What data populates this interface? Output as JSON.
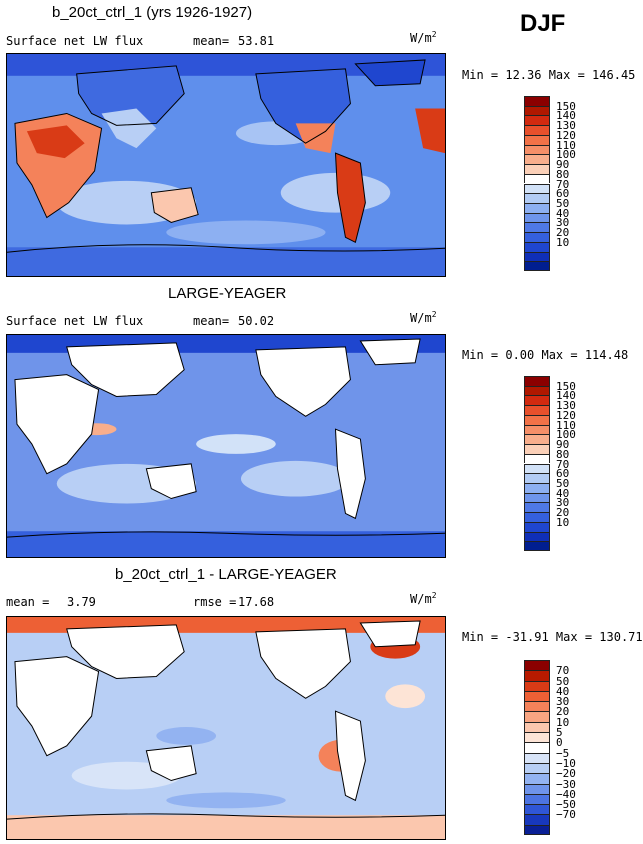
{
  "season": "DJF",
  "units": "W/m",
  "units_sup": "2",
  "panels": [
    {
      "title": "b_20ct_ctrl_1 (yrs 1926-1927)",
      "field": "Surface net LW flux",
      "mean_label": "mean=",
      "mean_value": "53.81",
      "rmse_label": "",
      "rmse_value": "",
      "minmax": "Min =  12.36 Max = 146.45",
      "map_mode": "full"
    },
    {
      "title": "LARGE-YEAGER",
      "field": "Surface net LW flux",
      "mean_label": "mean=",
      "mean_value": "50.02",
      "rmse_label": "",
      "rmse_value": "",
      "minmax": "Min =   0.00 Max = 114.48",
      "map_mode": "ocean"
    },
    {
      "title": "b_20ct_ctrl_1 - LARGE-YEAGER",
      "field": "mean =",
      "mean_label": "",
      "mean_value": "3.79",
      "rmse_label": "rmse =",
      "rmse_value": "17.68",
      "minmax": "Min = -31.91 Max = 130.71",
      "map_mode": "diff"
    }
  ],
  "colorbars": {
    "abs": {
      "labels": [
        "150",
        "140",
        "130",
        "120",
        "110",
        "100",
        "90",
        "80",
        "70",
        "60",
        "50",
        "40",
        "30",
        "20",
        "10"
      ],
      "colors": [
        "#8b0000",
        "#b01800",
        "#d22a10",
        "#e8502c",
        "#f27248",
        "#f58f68",
        "#f8ae8c",
        "#fbd0b8",
        "#ffffff",
        "#d2e2f8",
        "#b2ccf5",
        "#8db0f2",
        "#6e95ec",
        "#4f79e6",
        "#3560dd",
        "#1f46cf",
        "#0f2fb8",
        "#001e90"
      ]
    },
    "diff": {
      "labels": [
        "70",
        "50",
        "40",
        "30",
        "20",
        "10",
        "5",
        "0",
        "−5",
        "−10",
        "−20",
        "−30",
        "−40",
        "−50",
        "−70"
      ],
      "colors": [
        "#8b0000",
        "#b81a00",
        "#d93b16",
        "#ed6035",
        "#f4825a",
        "#f8a582",
        "#fbc7ae",
        "#fde4d6",
        "#ffffff",
        "#d8e4f8",
        "#b8cff5",
        "#93b3f1",
        "#6f94ea",
        "#4c74e2",
        "#2f56d6",
        "#1838bd",
        "#0a1f95"
      ]
    }
  }
}
